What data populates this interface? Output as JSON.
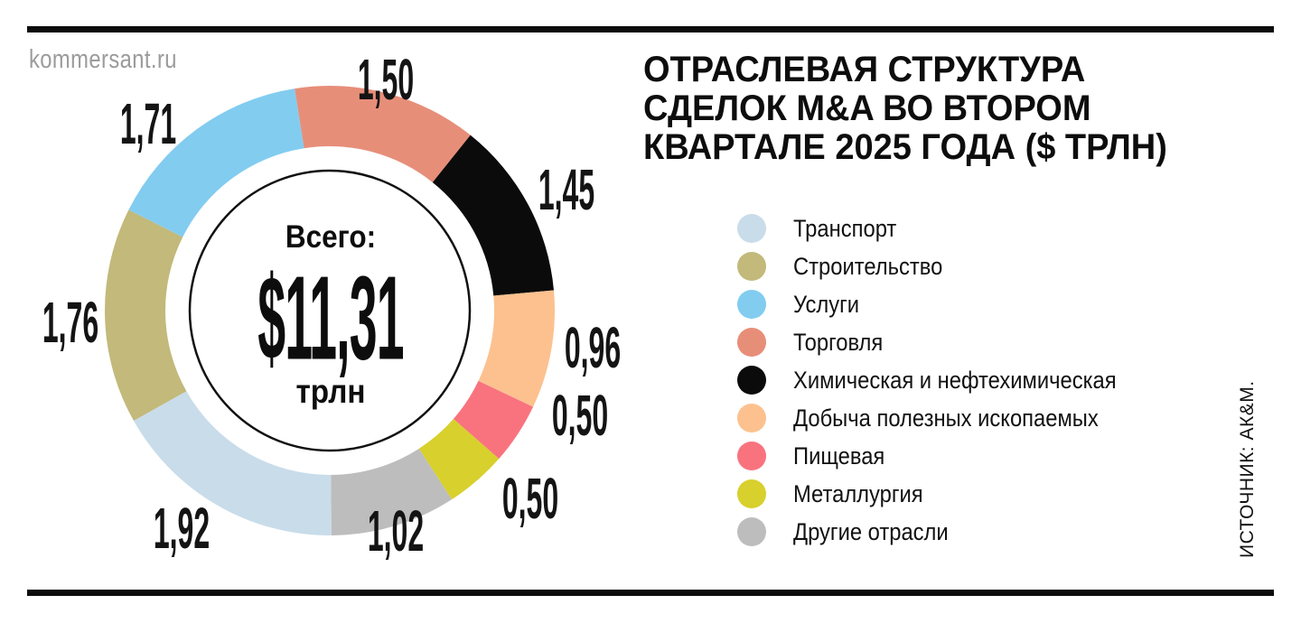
{
  "brand": "kommersant.ru",
  "source_credit": "ИСТОЧНИК: АК&М.",
  "title": {
    "line1": "ОТРАСЛЕВАЯ СТРУКТУРА",
    "line2": "СДЕЛОК M&A ВО ВТОРОМ",
    "line3": "КВАРТАЛЕ 2025 ГОДА ($ ТРЛН)"
  },
  "chart_data": {
    "type": "donut",
    "title": "ОТРАСЛЕВАЯ СТРУКТУРА СДЕЛОК M&A ВО ВТОРОМ КВАРТАЛЕ 2025 ГОДА ($ ТРЛН)",
    "units": "$ трлн",
    "total": {
      "label": "Всего:",
      "display": "$11,31",
      "unit": "трлн",
      "value": 11.31
    },
    "start_angle_deg": -9,
    "direction": "clockwise",
    "legend_position": "right",
    "segments": [
      {
        "name": "Торговля",
        "value": 1.5,
        "display": "1,50",
        "color": "#e78e79"
      },
      {
        "name": "Химическая и нефтехимическая",
        "value": 1.45,
        "display": "1,45",
        "color": "#0b0b0b"
      },
      {
        "name": "Добыча полезных ископаемых",
        "value": 0.96,
        "display": "0,96",
        "color": "#fcc18f"
      },
      {
        "name": "Пищевая",
        "value": 0.5,
        "display": "0,50",
        "color": "#f9737f"
      },
      {
        "name": "Металлургия",
        "value": 0.5,
        "display": "0,50",
        "color": "#d8d02c"
      },
      {
        "name": "Другие отрасли",
        "value": 1.02,
        "display": "1,02",
        "color": "#bdbdbd"
      },
      {
        "name": "Транспорт",
        "value": 1.92,
        "display": "1,92",
        "color": "#c9dcea"
      },
      {
        "name": "Строительство",
        "value": 1.76,
        "display": "1,76",
        "color": "#c2b97b"
      },
      {
        "name": "Услуги",
        "value": 1.71,
        "display": "1,71",
        "color": "#82ccf0"
      }
    ],
    "legend": [
      {
        "name": "Транспорт",
        "color": "#c9dcea"
      },
      {
        "name": "Строительство",
        "color": "#c2b97b"
      },
      {
        "name": "Услуги",
        "color": "#82ccf0"
      },
      {
        "name": "Торговля",
        "color": "#e78e79"
      },
      {
        "name": "Химическая и нефтехимическая",
        "color": "#0b0b0b"
      },
      {
        "name": "Добыча полезных ископаемых",
        "color": "#fcc18f"
      },
      {
        "name": "Пищевая",
        "color": "#f9737f"
      },
      {
        "name": "Металлургия",
        "color": "#d8d02c"
      },
      {
        "name": "Другие отрасли",
        "color": "#bdbdbd"
      }
    ]
  }
}
